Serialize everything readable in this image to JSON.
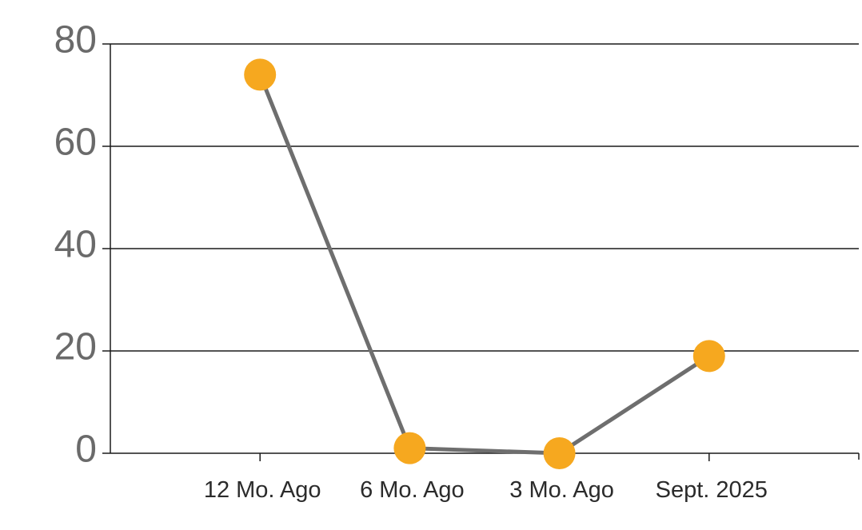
{
  "chart_data": {
    "type": "line",
    "categories": [
      "12 Mo. Ago",
      "6 Mo. Ago",
      "3 Mo. Ago",
      "Sept. 2025"
    ],
    "series": [
      {
        "name": "value",
        "values": [
          74,
          1,
          0,
          19
        ]
      }
    ],
    "ylim": [
      0,
      80
    ],
    "yticks": [
      0,
      20,
      40,
      60,
      80
    ],
    "grid": true,
    "legend": "none",
    "colors": {
      "marker": "#F6A81F",
      "line": "#6E6E6E",
      "grid": "#1A1A1A",
      "axis": "#1A1A1A",
      "y_label": "#6A6A6A",
      "x_label": "#2B2B2B",
      "background": "#FFFFFF"
    }
  }
}
